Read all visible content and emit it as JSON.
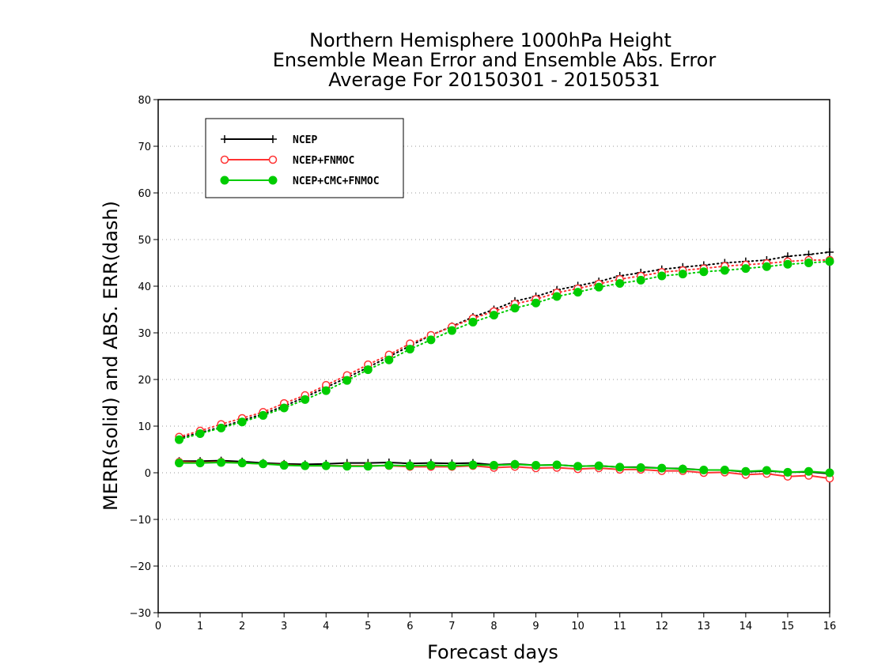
{
  "chart_data": {
    "type": "line",
    "title": [
      "Northern Hemisphere 1000hPa Height",
      "Ensemble Mean Error and Ensemble Abs. Error",
      "Average For 20150301 - 20150531"
    ],
    "xlabel": "Forecast days",
    "ylabel": "MERR(solid) and ABS. ERR(dash)",
    "xlim": [
      0,
      16
    ],
    "ylim": [
      -30,
      80
    ],
    "xticks": [
      "0",
      "1",
      "2",
      "3",
      "4",
      "5",
      "6",
      "7",
      "8",
      "9",
      "10",
      "11",
      "12",
      "13",
      "14",
      "15",
      "16"
    ],
    "yticks": [
      "80",
      "70",
      "60",
      "50",
      "40",
      "30",
      "20",
      "10",
      "0",
      "−10",
      "−20",
      "−30"
    ],
    "grid": "horizontal dotted",
    "legend_position": "top-left",
    "x": [
      0.5,
      1,
      1.5,
      2,
      2.5,
      3,
      3.5,
      4,
      4.5,
      5,
      5.5,
      6,
      6.5,
      7,
      7.5,
      8,
      8.5,
      9,
      9.5,
      10,
      10.5,
      11,
      11.5,
      12,
      12.5,
      13,
      13.5,
      14,
      14.5,
      15,
      15.5,
      16
    ],
    "series": [
      {
        "name": "NCEP",
        "color": "#000000",
        "marker": "plus",
        "merr": [
          2.5,
          2.5,
          2.6,
          2.4,
          2.1,
          1.9,
          1.8,
          1.9,
          2.1,
          2.1,
          2.2,
          2.0,
          2.1,
          2.0,
          2.1,
          1.7,
          1.9,
          1.6,
          1.7,
          1.4,
          1.5,
          1.2,
          1.2,
          1.0,
          0.9,
          0.6,
          0.6,
          0.2,
          0.4,
          0.1,
          0.2,
          -0.2
        ],
        "abs_err": [
          7.4,
          8.6,
          9.8,
          11.2,
          12.6,
          14.3,
          16.2,
          18.3,
          20.4,
          22.6,
          24.9,
          27.2,
          29.5,
          31.4,
          33.4,
          35.0,
          36.8,
          37.8,
          39.2,
          40.1,
          41.0,
          42.2,
          42.9,
          43.6,
          44.1,
          44.5,
          45.0,
          45.3,
          45.6,
          46.4,
          46.8,
          47.3
        ]
      },
      {
        "name": "NCEP+FNMOC",
        "color": "#ff3333",
        "marker": "open-circle",
        "merr": [
          2.3,
          2.2,
          2.3,
          2.1,
          1.9,
          1.7,
          1.5,
          1.5,
          1.5,
          1.5,
          1.5,
          1.3,
          1.3,
          1.3,
          1.5,
          1.1,
          1.3,
          1.0,
          1.1,
          0.8,
          1.0,
          0.7,
          0.7,
          0.4,
          0.4,
          0.0,
          0.1,
          -0.4,
          -0.2,
          -0.8,
          -0.6,
          -1.2
        ],
        "abs_err": [
          7.7,
          9.0,
          10.4,
          11.7,
          13.0,
          14.9,
          16.6,
          18.8,
          20.9,
          23.2,
          25.3,
          27.7,
          29.5,
          31.3,
          33.1,
          34.6,
          36.2,
          37.2,
          38.6,
          39.5,
          40.5,
          41.5,
          42.2,
          43.0,
          43.4,
          43.8,
          44.3,
          44.6,
          44.9,
          45.3,
          45.6,
          45.6
        ]
      },
      {
        "name": "NCEP+CMC+FNMOC",
        "color": "#00cc00",
        "marker": "filled-circle",
        "merr": [
          2.1,
          2.1,
          2.2,
          2.1,
          1.9,
          1.6,
          1.5,
          1.5,
          1.4,
          1.4,
          1.6,
          1.5,
          1.6,
          1.5,
          1.7,
          1.6,
          1.8,
          1.6,
          1.7,
          1.4,
          1.5,
          1.2,
          1.1,
          1.0,
          0.8,
          0.6,
          0.6,
          0.3,
          0.5,
          0.1,
          0.3,
          0.0
        ],
        "abs_err": [
          7.1,
          8.4,
          9.6,
          10.9,
          12.3,
          13.9,
          15.7,
          17.6,
          19.8,
          22.1,
          24.2,
          26.5,
          28.5,
          30.5,
          32.3,
          33.8,
          35.3,
          36.4,
          37.8,
          38.7,
          39.8,
          40.6,
          41.3,
          42.2,
          42.6,
          43.1,
          43.4,
          43.8,
          44.2,
          44.7,
          45.0,
          45.3
        ]
      }
    ]
  }
}
